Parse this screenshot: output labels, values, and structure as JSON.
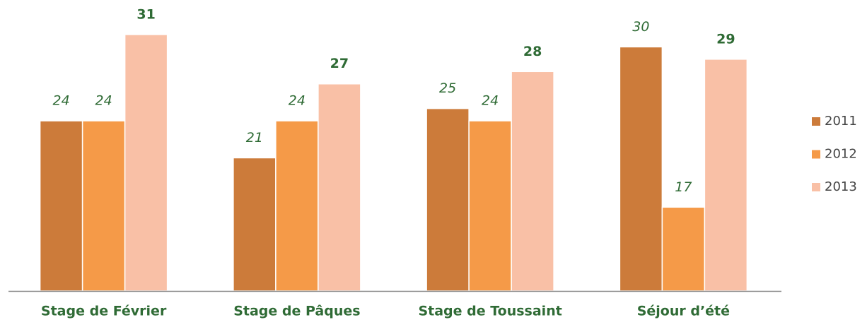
{
  "chart_data": {
    "type": "bar",
    "categories": [
      "Stage de Février",
      "Stage de Pâques",
      "Stage de Toussaint",
      "Séjour d’été"
    ],
    "series": [
      {
        "name": "2011",
        "color": "#cc7b3a",
        "label_style": "italic",
        "values": [
          24,
          21,
          25,
          30
        ]
      },
      {
        "name": "2012",
        "color": "#f59a48",
        "label_style": "italic",
        "values": [
          24,
          24,
          24,
          17
        ]
      },
      {
        "name": "2013",
        "color": "#f9c0a6",
        "label_style": "bold",
        "values": [
          31,
          27,
          28,
          29
        ]
      }
    ],
    "ylim": [
      10.2,
      33
    ],
    "legend": "right"
  }
}
